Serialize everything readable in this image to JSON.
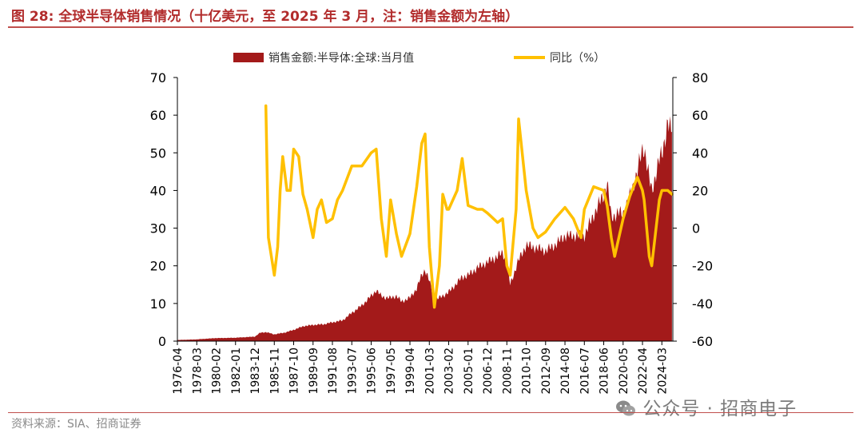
{
  "title": "图 28:  全球半导体销售情况（十亿美元，至 2025 年 3 月，注：销售金额为左轴）",
  "source": "资料来源：SIA、招商证券",
  "watermark": "公众号 · 招商电子",
  "watermark_icon": "wechat-icon",
  "colors": {
    "accent": "#b22c2c",
    "sales": "#a31a1a",
    "yoy": "#ffc000",
    "rule": "#c0504d"
  },
  "chart_data": {
    "type": "area+line",
    "legend_placement": "top",
    "grid": false,
    "x_tick_labels": [
      "1976-04",
      "1978-03",
      "1980-02",
      "1982-01",
      "1983-12",
      "1985-11",
      "1987-10",
      "1989-09",
      "1991-08",
      "1993-07",
      "1995-06",
      "1997-05",
      "1999-04",
      "2001-03",
      "2003-02",
      "2005-01",
      "2006-12",
      "2008-11",
      "2010-10",
      "2012-09",
      "2014-08",
      "2016-07",
      "2018-06",
      "2020-05",
      "2022-04",
      "2024-03"
    ],
    "y_left": {
      "min": 0,
      "max": 70,
      "ticks": [
        0,
        10,
        20,
        30,
        40,
        50,
        60,
        70
      ]
    },
    "y_right": {
      "min": -60,
      "max": 80,
      "ticks": [
        -60,
        -40,
        -20,
        0,
        20,
        40,
        60,
        80
      ]
    },
    "series": [
      {
        "name": "销售金额:半导体:全球:当月值",
        "type": "area",
        "axis": "left",
        "points": [
          [
            "1976-04",
            0.3
          ],
          [
            "1978-01",
            0.45
          ],
          [
            "1980-01",
            0.8
          ],
          [
            "1982-01",
            0.9
          ],
          [
            "1983-12",
            1.2
          ],
          [
            "1984-06",
            2.2
          ],
          [
            "1985-01",
            2.4
          ],
          [
            "1985-11",
            1.8
          ],
          [
            "1986-12",
            2.3
          ],
          [
            "1987-10",
            3.0
          ],
          [
            "1988-10",
            4.0
          ],
          [
            "1989-09",
            4.3
          ],
          [
            "1990-10",
            4.5
          ],
          [
            "1991-08",
            5.0
          ],
          [
            "1992-08",
            5.5
          ],
          [
            "1993-07",
            7.5
          ],
          [
            "1994-07",
            9.5
          ],
          [
            "1995-06",
            12.0
          ],
          [
            "1995-12",
            13.5
          ],
          [
            "1996-06",
            12.0
          ],
          [
            "1996-12",
            11.5
          ],
          [
            "1997-05",
            11.5
          ],
          [
            "1997-12",
            12.0
          ],
          [
            "1998-06",
            10.5
          ],
          [
            "1999-04",
            11.5
          ],
          [
            "1999-12",
            14.0
          ],
          [
            "2000-06",
            17.5
          ],
          [
            "2000-10",
            19.0
          ],
          [
            "2001-03",
            16.0
          ],
          [
            "2001-09",
            11.0
          ],
          [
            "2002-03",
            11.5
          ],
          [
            "2003-02",
            13.0
          ],
          [
            "2003-12",
            15.5
          ],
          [
            "2004-06",
            17.0
          ],
          [
            "2005-01",
            17.5
          ],
          [
            "2005-12",
            19.5
          ],
          [
            "2006-12",
            21.0
          ],
          [
            "2007-12",
            22.5
          ],
          [
            "2008-06",
            23.5
          ],
          [
            "2008-11",
            21.0
          ],
          [
            "2009-03",
            15.0
          ],
          [
            "2009-12",
            21.0
          ],
          [
            "2010-10",
            25.5
          ],
          [
            "2011-06",
            25.0
          ],
          [
            "2012-09",
            24.0
          ],
          [
            "2013-08",
            25.5
          ],
          [
            "2014-08",
            28.0
          ],
          [
            "2015-06",
            28.0
          ],
          [
            "2016-07",
            28.0
          ],
          [
            "2017-06",
            33.5
          ],
          [
            "2018-06",
            39.0
          ],
          [
            "2018-10",
            42.0
          ],
          [
            "2019-03",
            33.0
          ],
          [
            "2019-12",
            34.0
          ],
          [
            "2020-05",
            34.0
          ],
          [
            "2021-01",
            38.5
          ],
          [
            "2021-10",
            45.0
          ],
          [
            "2022-04",
            51.0
          ],
          [
            "2022-06",
            51.5
          ],
          [
            "2022-12",
            43.0
          ],
          [
            "2023-03",
            40.0
          ],
          [
            "2023-12",
            48.0
          ],
          [
            "2024-03",
            50.0
          ],
          [
            "2024-10",
            57.5
          ],
          [
            "2025-03",
            55.5
          ]
        ]
      },
      {
        "name": "同比（%）",
        "type": "line",
        "axis": "right",
        "points": [
          [
            "1985-01",
            65
          ],
          [
            "1985-04",
            -5
          ],
          [
            "1985-11",
            -25
          ],
          [
            "1986-03",
            -10
          ],
          [
            "1986-06",
            20
          ],
          [
            "1986-09",
            38
          ],
          [
            "1987-02",
            20
          ],
          [
            "1987-06",
            20
          ],
          [
            "1987-10",
            42
          ],
          [
            "1988-04",
            38
          ],
          [
            "1988-09",
            18
          ],
          [
            "1989-02",
            10
          ],
          [
            "1989-09",
            -5
          ],
          [
            "1990-02",
            10
          ],
          [
            "1990-07",
            15
          ],
          [
            "1991-01",
            3
          ],
          [
            "1991-08",
            5
          ],
          [
            "1992-02",
            15
          ],
          [
            "1992-08",
            20
          ],
          [
            "1993-07",
            33
          ],
          [
            "1994-07",
            33
          ],
          [
            "1995-06",
            40
          ],
          [
            "1995-12",
            42
          ],
          [
            "1996-06",
            5
          ],
          [
            "1996-12",
            -15
          ],
          [
            "1997-05",
            15
          ],
          [
            "1997-12",
            -3
          ],
          [
            "1998-06",
            -15
          ],
          [
            "1999-04",
            -3
          ],
          [
            "1999-12",
            22
          ],
          [
            "2000-06",
            45
          ],
          [
            "2000-10",
            50
          ],
          [
            "2001-03",
            -10
          ],
          [
            "2001-09",
            -42
          ],
          [
            "2002-03",
            -20
          ],
          [
            "2002-07",
            18
          ],
          [
            "2002-12",
            10
          ],
          [
            "2003-02",
            10
          ],
          [
            "2003-12",
            20
          ],
          [
            "2004-06",
            37
          ],
          [
            "2005-01",
            12
          ],
          [
            "2005-12",
            10
          ],
          [
            "2006-06",
            10
          ],
          [
            "2006-12",
            8
          ],
          [
            "2007-12",
            3
          ],
          [
            "2008-06",
            5
          ],
          [
            "2008-11",
            -20
          ],
          [
            "2009-03",
            -25
          ],
          [
            "2009-10",
            10
          ],
          [
            "2010-01",
            58
          ],
          [
            "2010-10",
            20
          ],
          [
            "2011-06",
            0
          ],
          [
            "2011-12",
            -5
          ],
          [
            "2012-09",
            -2
          ],
          [
            "2013-08",
            5
          ],
          [
            "2014-08",
            11
          ],
          [
            "2015-06",
            5
          ],
          [
            "2016-03",
            -5
          ],
          [
            "2016-07",
            10
          ],
          [
            "2017-06",
            22
          ],
          [
            "2018-06",
            20
          ],
          [
            "2018-10",
            12
          ],
          [
            "2019-03",
            -5
          ],
          [
            "2019-07",
            -15
          ],
          [
            "2020-05",
            5
          ],
          [
            "2021-01",
            17
          ],
          [
            "2021-10",
            27
          ],
          [
            "2022-04",
            20
          ],
          [
            "2022-06",
            15
          ],
          [
            "2022-12",
            -15
          ],
          [
            "2023-03",
            -20
          ],
          [
            "2023-12",
            15
          ],
          [
            "2024-03",
            20
          ],
          [
            "2024-10",
            20
          ],
          [
            "2025-03",
            18
          ]
        ]
      }
    ]
  }
}
